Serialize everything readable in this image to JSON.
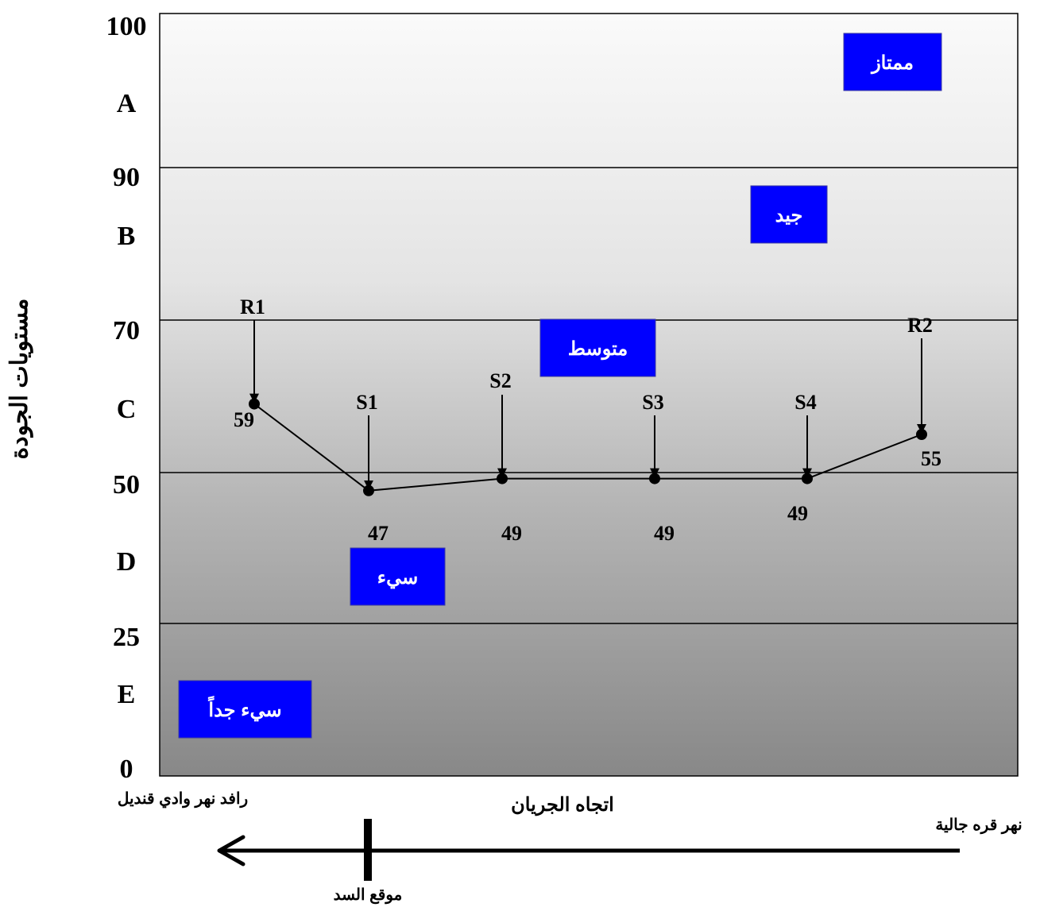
{
  "chart_data": {
    "type": "line",
    "ylabel": "مستويات الجودة",
    "xlabel": "اتجاه الجريان",
    "ylim": [
      0,
      100
    ],
    "y_ticks": [
      "100",
      "A",
      "90",
      "B",
      "70",
      "C",
      "50",
      "D",
      "25",
      "E",
      "0"
    ],
    "bands": [
      {
        "from": 90,
        "to": 100,
        "grade": "A",
        "label": "ممتاز"
      },
      {
        "from": 70,
        "to": 90,
        "grade": "B",
        "label": "جيد"
      },
      {
        "from": 50,
        "to": 70,
        "grade": "C",
        "label": "متوسط"
      },
      {
        "from": 25,
        "to": 50,
        "grade": "D",
        "label": "سيء"
      },
      {
        "from": 0,
        "to": 25,
        "grade": "E",
        "label": "سيء جداً"
      }
    ],
    "stations": [
      {
        "name": "R1",
        "value": 59
      },
      {
        "name": "S1",
        "value": 47
      },
      {
        "name": "S2",
        "value": 49
      },
      {
        "name": "S3",
        "value": 49
      },
      {
        "name": "S4",
        "value": 49
      },
      {
        "name": "R2",
        "value": 55
      }
    ],
    "flow": {
      "left_label": "رافد نهر وادي قنديل",
      "right_label": "نهر قره جالية",
      "dam_label": "موقع السد"
    },
    "grid": true,
    "colors": {
      "label_box": "#0000ff",
      "line": "#000000"
    }
  }
}
